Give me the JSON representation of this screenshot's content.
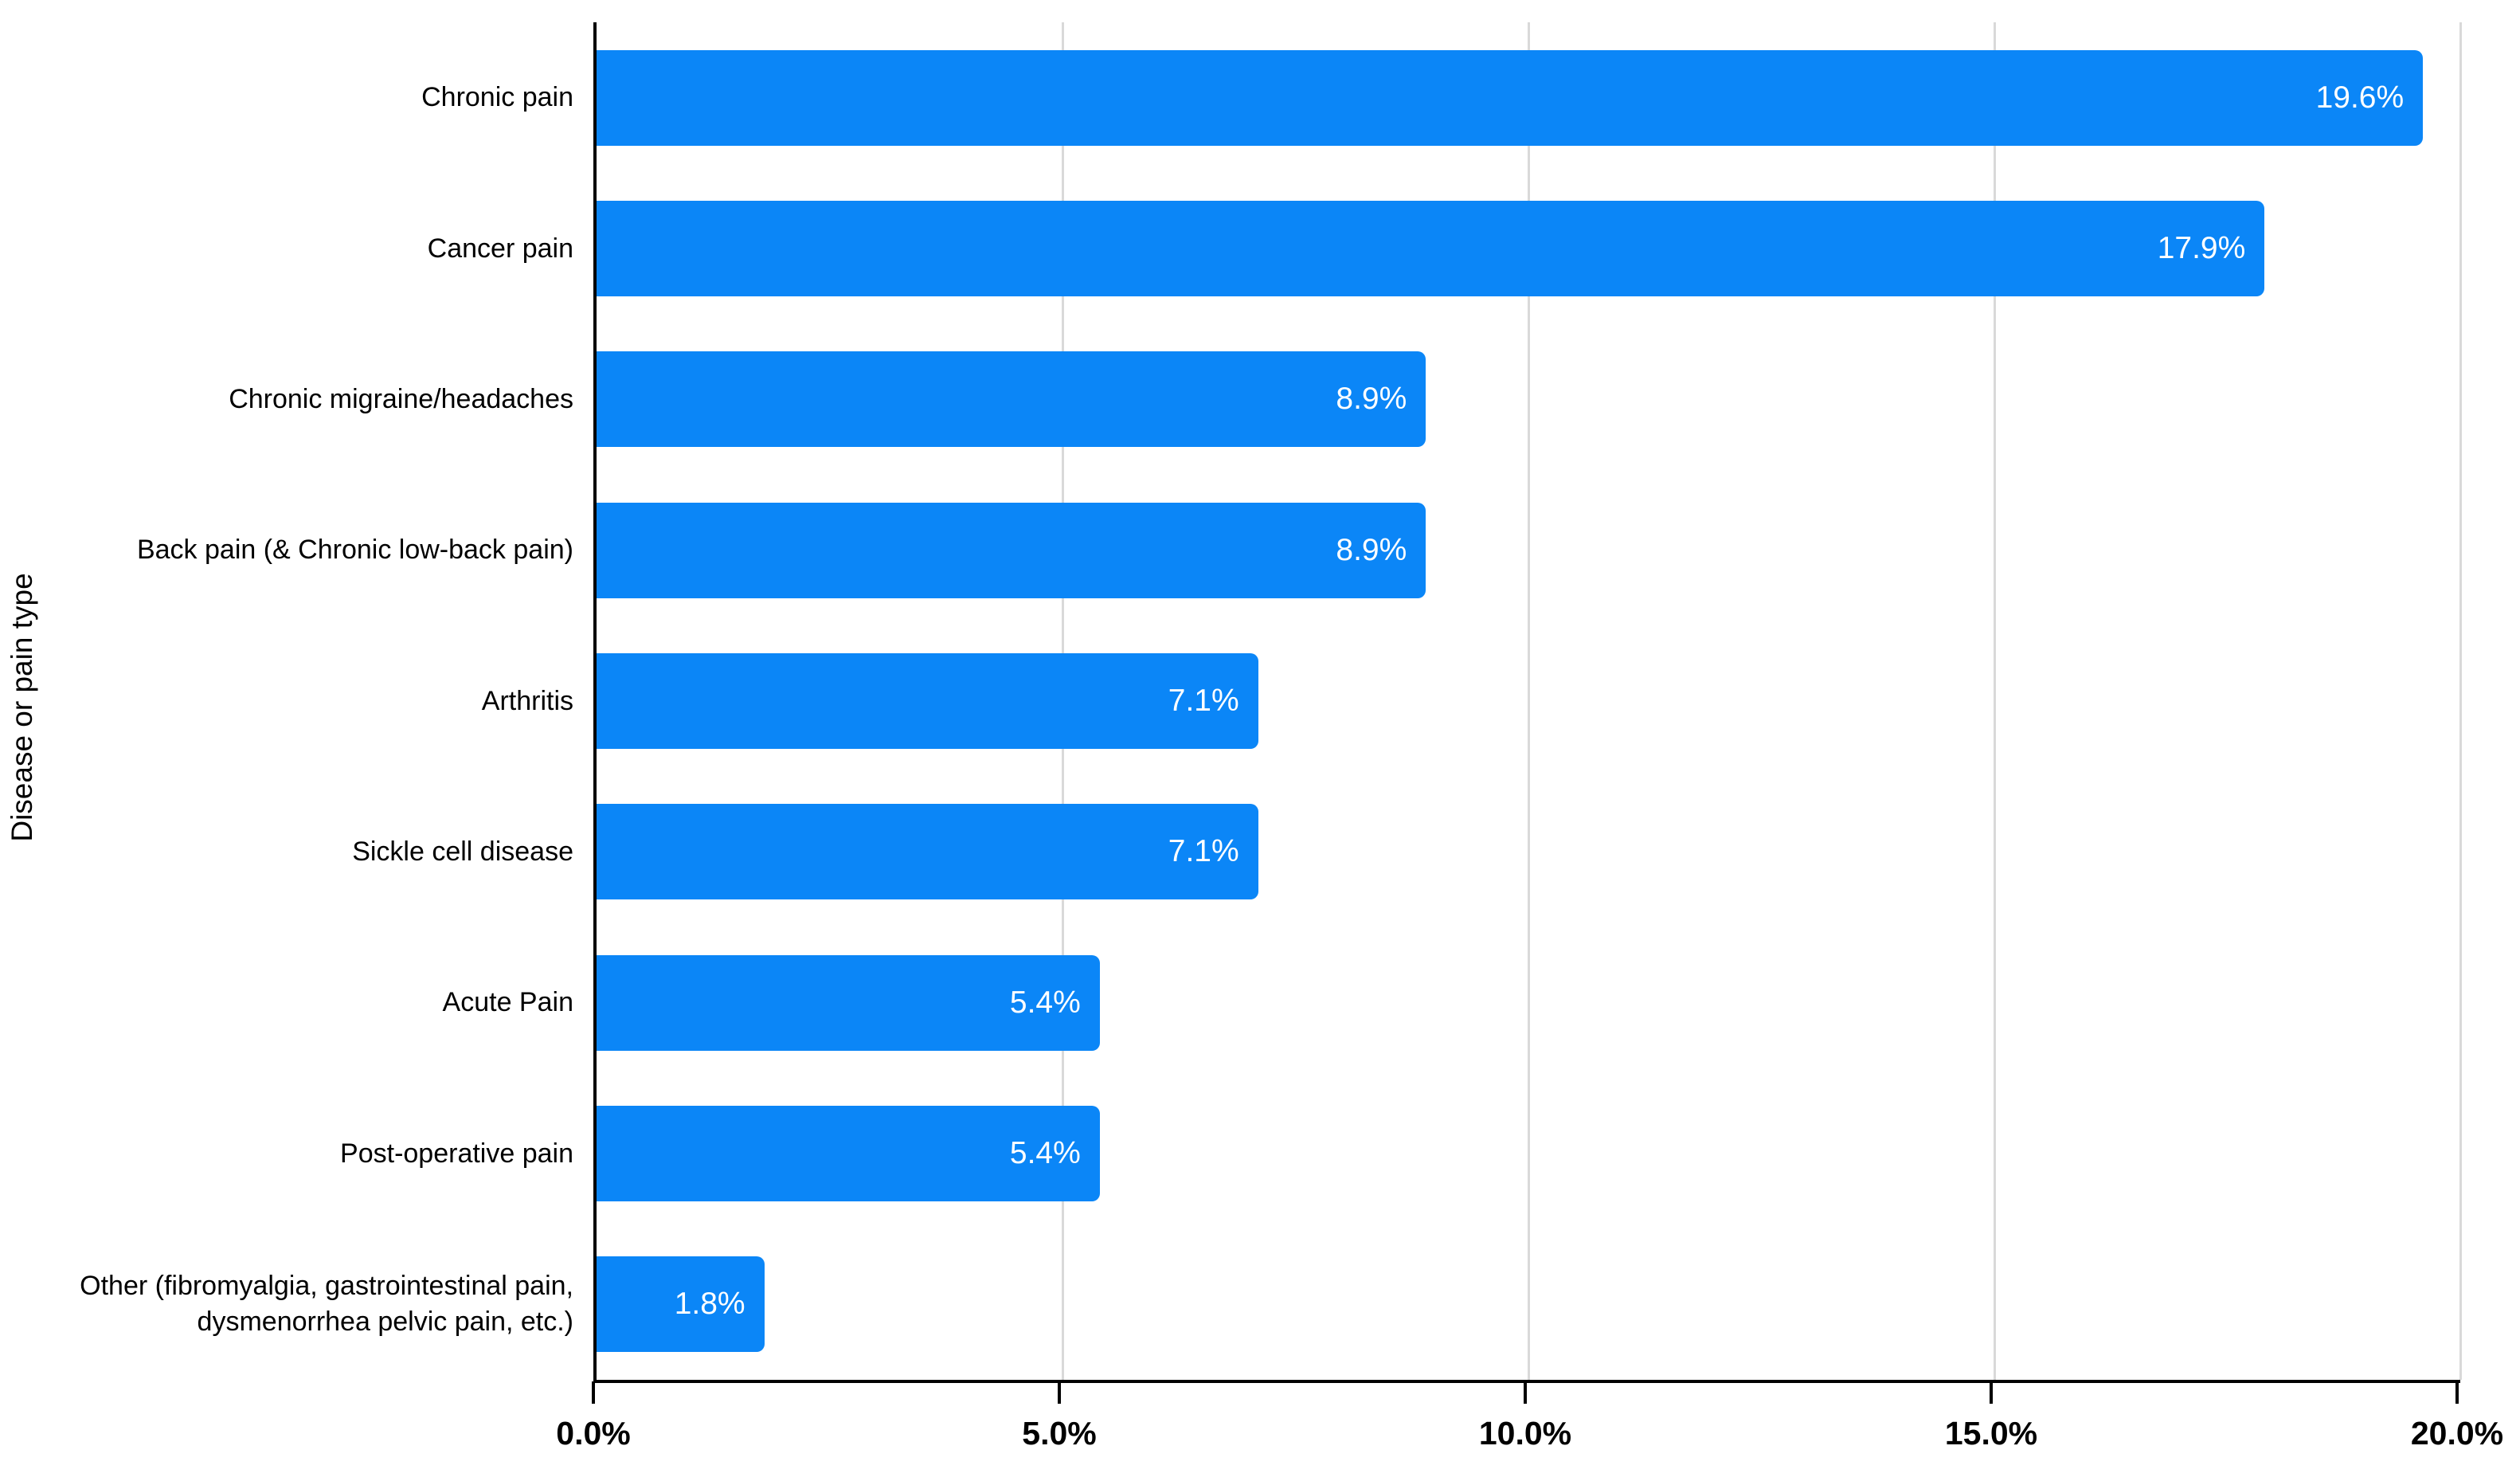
{
  "chart_data": {
    "type": "bar",
    "orientation": "horizontal",
    "title": "",
    "xlabel": "",
    "ylabel": "Disease or pain type",
    "categories": [
      "Chronic pain",
      "Cancer pain",
      "Chronic migraine/headaches",
      "Back pain (& Chronic low-back pain)",
      "Arthritis",
      "Sickle cell disease",
      "Acute Pain",
      "Post-operative pain",
      "Other (fibromyalgia, gastrointestinal pain, dysmenorrhea pelvic pain, etc.)"
    ],
    "values": [
      19.6,
      17.9,
      8.9,
      8.9,
      7.1,
      7.1,
      5.4,
      5.4,
      1.8
    ],
    "value_labels": [
      "19.6%",
      "17.9%",
      "8.9%",
      "8.9%",
      "7.1%",
      "7.1%",
      "5.4%",
      "5.4%",
      "1.8%"
    ],
    "x_ticks": [
      "0.0%",
      "5.0%",
      "10.0%",
      "15.0%",
      "20.0%"
    ],
    "xlim": [
      0,
      20
    ],
    "grid": "vertical gridlines every 5%, behind bars",
    "legend": "none",
    "colors": {
      "bar": "#0b86f7",
      "gridline": "#d9d9d9",
      "axis": "#000000",
      "value_text": "#ffffff",
      "label_text": "#000000",
      "background": "#ffffff"
    }
  }
}
